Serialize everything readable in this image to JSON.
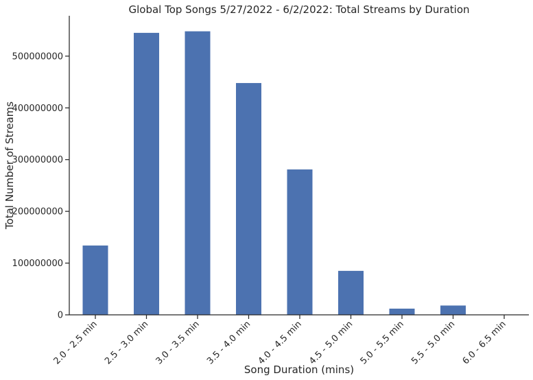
{
  "chart_data": {
    "type": "bar",
    "title": "Global Top Songs 5/27/2022 - 6/2/2022: Total Streams by Duration",
    "xlabel": "Song Duration (mins)",
    "ylabel": "Total Number of Streams",
    "categories": [
      "2.0 - 2.5 min",
      "2.5 - 3.0 min",
      "3.0 - 3.5 min",
      "3.5 - 4.0 min",
      "4.0 - 4.5 min",
      "4.5 - 5.0 min",
      "5.0 - 5.5 min",
      "5.5 - 5.0 min",
      "6.0 - 6.5 min"
    ],
    "values": [
      134000000,
      545000000,
      548000000,
      448000000,
      281000000,
      85000000,
      12000000,
      18000000,
      0
    ],
    "ylim": [
      0,
      578000000
    ],
    "yticks": [
      0,
      100000000,
      200000000,
      300000000,
      400000000,
      500000000
    ],
    "ytick_labels": [
      "0",
      "100000000",
      "200000000",
      "300000000",
      "400000000",
      "500000000"
    ],
    "bar_color": "#4c72b0",
    "grid": false,
    "legend": "none"
  }
}
